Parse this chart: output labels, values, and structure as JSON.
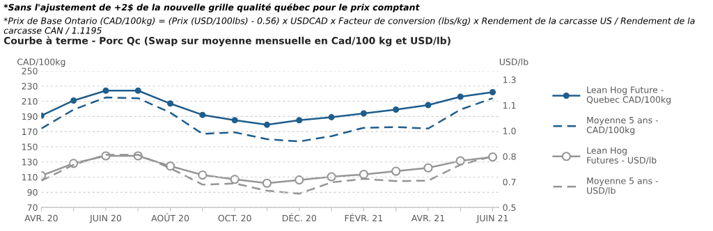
{
  "chart_data": {
    "type": "line",
    "title": "Courbe à terme - Porc Qc (Swap sur moyenne mensuelle en Cad/100 kg et USD/lb)",
    "annotations": [
      "*Sans l'ajustement de +2$ de la nouvelle grille qualité québec pour le prix comptant",
      "*Prix de Base Ontario (CAD/100kg) = (Prix (USD/100lbs) - 0.56) x USDCAD x Facteur de conversion (lbs/kg) x Rendement de la carcasse US / Rendement de la carcasse CAN / 1.1195"
    ],
    "ylabel": "CAD/100kg",
    "y2label": "USD/lb",
    "categories": [
      "AVR. 20",
      null,
      "JUIN 20",
      null,
      "AOÛT 20",
      null,
      "OCT. 20",
      null,
      "DÉC. 20",
      null,
      "FÉVR. 21",
      null,
      "AVR. 21",
      null,
      "JUIN 21"
    ],
    "series": [
      {
        "name": "Lean Hog Future -\nQuebec CAD/100kg",
        "color": "#1f5d8c",
        "marker": "circle",
        "line_style": "solid",
        "values": [
          191,
          211,
          224,
          224,
          207,
          192,
          185,
          179,
          185,
          189,
          194,
          199,
          205,
          216,
          222
        ]
      },
      {
        "name": "Moyenne 5 ans -\nCAD/100kg",
        "color": "#1f5d8c",
        "marker": "none",
        "line_style": "dashed",
        "values": [
          174,
          199,
          215,
          214,
          195,
          167,
          169,
          160,
          157,
          164,
          175,
          176,
          174,
          199,
          214
        ]
      },
      {
        "name": "Lean Hog\nFutures - USD/lb",
        "color": "#959595",
        "marker": "circle",
        "line_style": "solid",
        "axis": "y2",
        "values": [
          0.699,
          0.776,
          0.823,
          0.823,
          0.759,
          0.703,
          0.676,
          0.652,
          0.672,
          0.692,
          0.707,
          0.727,
          0.748,
          0.792,
          0.816
        ]
      },
      {
        "name": "Moyenne 5 ans -\nUSD/lb",
        "color": "#959595",
        "marker": "none",
        "line_style": "dashed",
        "axis": "y2",
        "values": [
          0.668,
          0.767,
          0.83,
          0.83,
          0.746,
          0.643,
          0.65,
          0.605,
          0.586,
          0.657,
          0.679,
          0.665,
          0.668,
          0.767,
          0.82
        ]
      }
    ],
    "ylim": [
      70,
      250
    ],
    "yticks": [
      70,
      90,
      110,
      130,
      150,
      170,
      190,
      210,
      230,
      250
    ],
    "y2lim": [
      0.5,
      1.355
    ],
    "y2ticks": [
      0.5,
      {
        "value": 0.66,
        "label": "0.7"
      },
      {
        "value": 0.82,
        "label": "0.8"
      },
      {
        "value": 0.98,
        "label": "1.0"
      },
      {
        "value": 1.14,
        "label": "1.1"
      },
      {
        "value": 1.3,
        "label": "1.3"
      }
    ],
    "grid": "y",
    "legend": "right"
  }
}
